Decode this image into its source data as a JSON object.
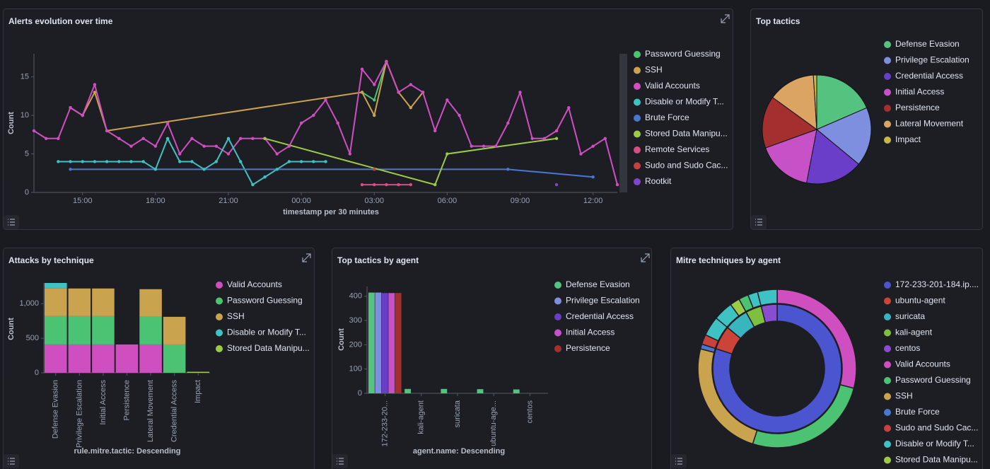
{
  "chart_data": [
    {
      "type": "line",
      "title": "Alerts evolution over time",
      "x_label": "timestamp per 30 minutes",
      "y_label": "Count",
      "categories": [
        null,
        null,
        null,
        null,
        "15:00",
        null,
        null,
        null,
        null,
        null,
        "18:00",
        null,
        null,
        null,
        null,
        null,
        "21:00",
        null,
        null,
        null,
        null,
        null,
        "00:00",
        null,
        null,
        null,
        null,
        null,
        "03:00",
        null,
        null,
        null,
        null,
        null,
        "06:00",
        null,
        null,
        null,
        null,
        null,
        "09:00",
        null,
        null,
        null,
        null,
        null,
        "12:00",
        null,
        null
      ],
      "ylim": [
        0,
        18
      ],
      "yticks": [
        0,
        5,
        10,
        15
      ],
      "series": [
        {
          "name": "Password Guessing",
          "color": "#4cc273",
          "values": [
            null,
            null,
            null,
            null,
            null,
            null,
            null,
            null,
            null,
            null,
            null,
            null,
            null,
            null,
            null,
            null,
            null,
            null,
            null,
            null,
            null,
            null,
            null,
            null,
            null,
            null,
            null,
            13,
            12,
            17,
            null,
            null,
            null,
            null,
            null,
            null,
            null,
            null,
            null,
            null,
            null,
            null,
            null,
            null,
            null,
            null,
            null,
            null,
            null
          ]
        },
        {
          "name": "SSH",
          "color": "#c9a34e",
          "values": [
            null,
            null,
            null,
            11,
            10,
            13,
            8,
            null,
            null,
            null,
            null,
            null,
            null,
            null,
            null,
            null,
            null,
            null,
            null,
            null,
            null,
            null,
            null,
            null,
            null,
            null,
            null,
            13,
            10,
            17,
            13,
            11,
            13,
            null,
            null,
            null,
            null,
            null,
            null,
            null,
            null,
            null,
            null,
            null,
            null,
            null,
            null,
            null,
            null
          ]
        },
        {
          "name": "Valid Accounts",
          "color": "#cf4fc1",
          "values": [
            8,
            7,
            7,
            11,
            10,
            14,
            8,
            7,
            6,
            7,
            6,
            9,
            5,
            7,
            6,
            6,
            5,
            7,
            7,
            7,
            5,
            6,
            9,
            10,
            12,
            9,
            5,
            16,
            14,
            17,
            13,
            14,
            13,
            8,
            12,
            10,
            6,
            6,
            6,
            9,
            13,
            7,
            7,
            8,
            11,
            5,
            6,
            7,
            1
          ]
        },
        {
          "name": "Disable or Modify T...",
          "color": "#3fc2c4",
          "values": [
            null,
            null,
            4,
            4,
            4,
            4,
            4,
            4,
            4,
            4,
            3,
            7,
            4,
            4,
            3,
            4,
            7,
            4,
            1,
            2,
            3,
            4,
            4,
            4,
            4,
            null,
            null,
            null,
            null,
            null,
            null,
            null,
            null,
            null,
            null,
            null,
            null,
            null,
            null,
            null,
            null,
            null,
            null,
            null,
            null,
            null,
            null,
            null,
            null
          ]
        },
        {
          "name": "Brute Force",
          "color": "#4b77d1",
          "values": [
            null,
            null,
            null,
            3,
            null,
            null,
            null,
            null,
            null,
            null,
            null,
            null,
            null,
            null,
            null,
            null,
            null,
            null,
            null,
            null,
            null,
            null,
            null,
            null,
            null,
            null,
            null,
            null,
            null,
            null,
            null,
            null,
            null,
            null,
            null,
            null,
            null,
            null,
            null,
            3,
            null,
            null,
            null,
            null,
            null,
            null,
            2,
            null,
            null
          ]
        },
        {
          "name": "Stored Data Manipu...",
          "color": "#9dcb47",
          "values": [
            null,
            null,
            null,
            null,
            null,
            null,
            null,
            null,
            null,
            null,
            null,
            null,
            null,
            null,
            null,
            null,
            null,
            null,
            null,
            7,
            null,
            null,
            null,
            null,
            null,
            null,
            null,
            null,
            null,
            null,
            null,
            null,
            null,
            1,
            5,
            null,
            null,
            null,
            null,
            null,
            null,
            null,
            null,
            7,
            null,
            null,
            null,
            null,
            null
          ]
        },
        {
          "name": "Remote Services",
          "color": "#d64f86",
          "values": [
            null,
            null,
            null,
            null,
            null,
            null,
            null,
            null,
            null,
            null,
            null,
            null,
            null,
            null,
            null,
            null,
            null,
            null,
            null,
            null,
            null,
            null,
            null,
            null,
            null,
            null,
            null,
            1,
            1,
            1,
            1,
            1,
            null,
            null,
            null,
            null,
            null,
            null,
            null,
            null,
            null,
            null,
            null,
            null,
            null,
            null,
            null,
            null,
            null
          ]
        },
        {
          "name": "Sudo and Sudo Cac...",
          "color": "#c9413e",
          "values": [
            null,
            null,
            null,
            null,
            null,
            null,
            null,
            null,
            null,
            null,
            null,
            null,
            null,
            null,
            null,
            null,
            null,
            null,
            null,
            null,
            null,
            null,
            null,
            null,
            null,
            null,
            null,
            null,
            3,
            null,
            null,
            null,
            null,
            null,
            null,
            null,
            null,
            null,
            null,
            null,
            null,
            null,
            null,
            null,
            null,
            null,
            null,
            null,
            null
          ]
        },
        {
          "name": "Rootkit",
          "color": "#7e47c9",
          "values": [
            null,
            null,
            null,
            null,
            null,
            null,
            null,
            null,
            null,
            null,
            null,
            null,
            null,
            null,
            null,
            null,
            null,
            null,
            null,
            null,
            null,
            null,
            null,
            null,
            null,
            null,
            null,
            null,
            null,
            null,
            null,
            null,
            null,
            null,
            null,
            null,
            null,
            null,
            null,
            null,
            null,
            null,
            null,
            1,
            null,
            null,
            null,
            null,
            null
          ]
        }
      ]
    },
    {
      "type": "pie",
      "title": "Top tactics",
      "categories": [
        "Defense Evasion",
        "Privilege Escalation",
        "Credential Access",
        "Initial Access",
        "Persistence",
        "Lateral Movement",
        "Impact"
      ],
      "values": [
        18.5,
        17.5,
        17,
        16.5,
        15.5,
        14,
        1
      ],
      "colors": [
        "#54c37f",
        "#7f8fe0",
        "#6a3ec9",
        "#c751c7",
        "#a3302f",
        "#dca462",
        "#c8b845"
      ]
    },
    {
      "type": "bar",
      "stacked": true,
      "title": "Attacks by technique",
      "x_label": "rule.mitre.tactic: Descending",
      "y_label": "Count",
      "categories": [
        "Defense Evasion",
        "Privilege Escalation",
        "Initial Access",
        "Persistence",
        "Lateral Movement",
        "Credential Access",
        "Impact"
      ],
      "ylim": [
        0,
        1300
      ],
      "yticks": [
        0,
        500,
        {
          "value": 1000,
          "label": "1,000"
        }
      ],
      "series": [
        {
          "name": "Valid Accounts",
          "color": "#cf4fc1",
          "values": [
            410,
            410,
            410,
            410,
            410,
            null,
            null
          ]
        },
        {
          "name": "Password Guessing",
          "color": "#4cc273",
          "values": [
            410,
            410,
            410,
            null,
            400,
            410,
            null
          ]
        },
        {
          "name": "SSH",
          "color": "#c9a34e",
          "values": [
            400,
            400,
            400,
            null,
            400,
            400,
            null
          ]
        },
        {
          "name": "Disable or Modify T...",
          "color": "#3fc2c4",
          "values": [
            80,
            null,
            null,
            null,
            null,
            null,
            null
          ]
        },
        {
          "name": "Stored Data Manipu...",
          "color": "#9dcb47",
          "values": [
            null,
            null,
            null,
            null,
            null,
            null,
            15
          ]
        }
      ]
    },
    {
      "type": "bar",
      "stacked": false,
      "title": "Top tactics by agent",
      "x_label": "agent.name: Descending",
      "y_label": "Count",
      "categories": [
        "172-233-20...",
        "kali-agent",
        "suricata",
        "ubuntu-age...",
        "centos"
      ],
      "ylim": [
        0,
        440
      ],
      "yticks": [
        0,
        100,
        200,
        300,
        400
      ],
      "series": [
        {
          "name": "Defense Evasion",
          "color": "#54c37f",
          "values": [
            415,
            18,
            18,
            17,
            16
          ]
        },
        {
          "name": "Privilege Escalation",
          "color": "#7f8fe0",
          "values": [
            415,
            null,
            null,
            null,
            null
          ]
        },
        {
          "name": "Credential Access",
          "color": "#6a3ec9",
          "values": [
            413,
            null,
            null,
            null,
            null
          ]
        },
        {
          "name": "Initial Access",
          "color": "#c751c7",
          "values": [
            413,
            null,
            null,
            null,
            null
          ]
        },
        {
          "name": "Persistence",
          "color": "#a3302f",
          "values": [
            413,
            null,
            null,
            null,
            null
          ]
        }
      ]
    },
    {
      "type": "donut",
      "title": "Mitre techniques by agent",
      "categories": [
        "172-233-201-184.ip....",
        "ubuntu-agent",
        "suricata",
        "kali-agent",
        "centos"
      ],
      "values": [
        80,
        6,
        6,
        4,
        4
      ],
      "colors": [
        "#4a55cf",
        "#cc4339",
        "#39b5c0",
        "#7fbf3f",
        "#8b4dd0"
      ],
      "series": [
        {
          "name": "Valid Accounts",
          "color": "#cf4fc1",
          "values": [
            29,
            null,
            null,
            null,
            null
          ]
        },
        {
          "name": "Password Guessing",
          "color": "#4cc273",
          "values": [
            26,
            null,
            null,
            2,
            null
          ]
        },
        {
          "name": "SSH",
          "color": "#c9a34e",
          "values": [
            24,
            null,
            null,
            null,
            null
          ]
        },
        {
          "name": "Brute Force",
          "color": "#4b77d1",
          "values": [
            1,
            null,
            null,
            null,
            null
          ]
        },
        {
          "name": "Sudo and Sudo Cac...",
          "color": "#c9413e",
          "values": [
            null,
            2,
            null,
            null,
            null
          ]
        },
        {
          "name": "Disable or Modify T...",
          "color": "#3fc2c4",
          "values": [
            null,
            4,
            4,
            2,
            4
          ]
        },
        {
          "name": "Stored Data Manipu...",
          "color": "#9dcb47",
          "values": [
            null,
            null,
            2,
            null,
            null
          ]
        }
      ]
    }
  ]
}
